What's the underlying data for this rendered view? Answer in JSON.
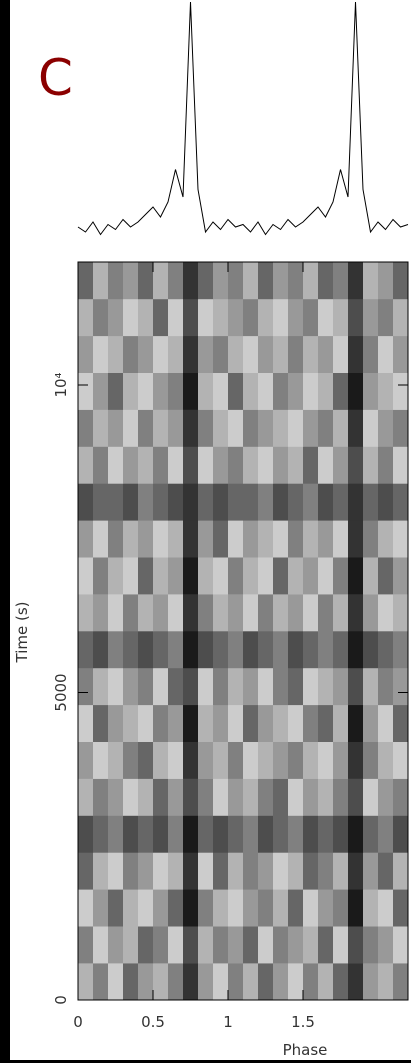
{
  "chart_data": [
    {
      "type": "line",
      "panel_label": "C",
      "color": "#000000",
      "xlim": [
        0,
        2.2
      ],
      "ylim": [
        0,
        100
      ],
      "x": [
        0,
        0.05,
        0.1,
        0.15,
        0.2,
        0.25,
        0.3,
        0.35,
        0.4,
        0.45,
        0.5,
        0.55,
        0.6,
        0.65,
        0.7,
        0.75,
        0.8,
        0.85,
        0.9,
        0.95,
        1.0,
        1.05,
        1.1,
        1.15,
        1.2,
        1.25,
        1.3,
        1.35,
        1.4,
        1.45,
        1.5,
        1.55,
        1.6,
        1.65,
        1.7,
        1.75,
        1.8,
        1.85,
        1.9,
        1.95,
        2.0,
        2.05,
        2.1,
        2.15,
        2.2
      ],
      "values": [
        10,
        8,
        12,
        7,
        11,
        9,
        13,
        10,
        12,
        15,
        18,
        14,
        20,
        33,
        22,
        100,
        25,
        8,
        12,
        9,
        13,
        10,
        11,
        8,
        12,
        7,
        11,
        9,
        13,
        10,
        12,
        15,
        18,
        14,
        20,
        33,
        22,
        100,
        25,
        8,
        12,
        9,
        13,
        10,
        11
      ]
    },
    {
      "type": "heatmap",
      "xlabel": "Phase",
      "ylabel": "Time (s)",
      "xlim": [
        0,
        2.2
      ],
      "ylim": [
        0,
        12000
      ],
      "xticks": [
        0,
        0.5,
        1,
        1.5
      ],
      "yticks": [
        0,
        5000,
        {
          "value": 10000,
          "label": "10⁴"
        }
      ],
      "vlim": [
        0,
        10
      ],
      "values": [
        [
          3,
          5,
          2,
          6,
          4,
          3,
          5,
          8,
          4,
          2,
          5,
          3,
          6,
          4,
          2,
          5,
          3,
          6,
          8,
          4,
          3,
          5
        ],
        [
          5,
          2,
          4,
          3,
          6,
          5,
          2,
          7,
          3,
          5,
          4,
          6,
          2,
          5,
          4,
          3,
          6,
          2,
          7,
          5,
          4,
          2
        ],
        [
          2,
          4,
          6,
          3,
          2,
          4,
          6,
          9,
          5,
          3,
          2,
          4,
          5,
          3,
          6,
          2,
          4,
          5,
          9,
          3,
          2,
          6
        ],
        [
          6,
          3,
          2,
          5,
          4,
          2,
          3,
          8,
          2,
          6,
          3,
          5,
          4,
          2,
          3,
          6,
          5,
          3,
          8,
          4,
          6,
          3
        ],
        [
          7,
          6,
          5,
          7,
          6,
          7,
          5,
          9,
          6,
          7,
          6,
          5,
          7,
          6,
          5,
          7,
          6,
          7,
          9,
          6,
          5,
          7
        ],
        [
          3,
          5,
          4,
          2,
          3,
          6,
          4,
          7,
          5,
          2,
          4,
          3,
          5,
          6,
          2,
          4,
          3,
          5,
          7,
          2,
          4,
          5
        ],
        [
          4,
          2,
          3,
          5,
          6,
          3,
          2,
          8,
          4,
          3,
          5,
          2,
          3,
          4,
          5,
          3,
          2,
          4,
          8,
          5,
          3,
          2
        ],
        [
          2,
          6,
          4,
          3,
          2,
          5,
          4,
          9,
          3,
          4,
          2,
          6,
          4,
          3,
          2,
          5,
          6,
          3,
          9,
          4,
          2,
          6
        ],
        [
          5,
          3,
          2,
          4,
          5,
          2,
          6,
          7,
          2,
          5,
          3,
          4,
          2,
          5,
          6,
          2,
          3,
          4,
          7,
          3,
          5,
          4
        ],
        [
          6,
          7,
          5,
          6,
          7,
          6,
          5,
          9,
          7,
          6,
          5,
          7,
          6,
          5,
          7,
          6,
          5,
          6,
          9,
          7,
          6,
          5
        ],
        [
          3,
          4,
          2,
          5,
          3,
          4,
          2,
          8,
          5,
          3,
          4,
          2,
          5,
          3,
          4,
          2,
          5,
          3,
          8,
          4,
          2,
          3
        ],
        [
          2,
          5,
          3,
          2,
          6,
          3,
          4,
          9,
          3,
          2,
          5,
          3,
          2,
          6,
          3,
          4,
          2,
          5,
          9,
          3,
          6,
          4
        ],
        [
          4,
          2,
          5,
          3,
          4,
          2,
          3,
          8,
          4,
          6,
          2,
          4,
          3,
          2,
          5,
          3,
          4,
          2,
          8,
          5,
          3,
          2
        ],
        [
          7,
          6,
          6,
          7,
          5,
          6,
          7,
          8,
          6,
          7,
          6,
          6,
          5,
          7,
          6,
          5,
          7,
          6,
          8,
          6,
          7,
          6
        ],
        [
          3,
          5,
          2,
          4,
          3,
          5,
          2,
          7,
          2,
          4,
          5,
          3,
          2,
          4,
          3,
          6,
          2,
          4,
          7,
          3,
          5,
          2
        ],
        [
          5,
          3,
          4,
          2,
          5,
          3,
          4,
          8,
          5,
          3,
          2,
          5,
          4,
          3,
          2,
          4,
          5,
          3,
          8,
          2,
          4,
          5
        ],
        [
          2,
          4,
          6,
          3,
          2,
          4,
          5,
          9,
          3,
          2,
          6,
          3,
          2,
          5,
          4,
          2,
          3,
          6,
          9,
          4,
          3,
          2
        ],
        [
          4,
          2,
          3,
          5,
          4,
          2,
          3,
          8,
          4,
          5,
          3,
          2,
          4,
          3,
          5,
          3,
          4,
          2,
          8,
          5,
          2,
          4
        ],
        [
          3,
          5,
          4,
          2,
          3,
          6,
          2,
          7,
          2,
          3,
          4,
          5,
          3,
          2,
          4,
          5,
          2,
          3,
          7,
          4,
          5,
          3
        ],
        [
          6,
          3,
          5,
          4,
          6,
          3,
          5,
          8,
          6,
          4,
          5,
          3,
          6,
          4,
          5,
          3,
          6,
          5,
          8,
          3,
          4,
          6
        ]
      ]
    }
  ]
}
